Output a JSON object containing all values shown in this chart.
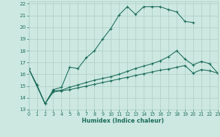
{
  "xlabel": "Humidex (Indice chaleur)",
  "bg_color": "#cce8e0",
  "grid_color": "#aaccC4",
  "line_color": "#1a6b5a",
  "xlim": [
    0,
    23
  ],
  "ylim": [
    13,
    22.2
  ],
  "yticks": [
    13,
    14,
    15,
    16,
    17,
    18,
    19,
    20,
    21,
    22
  ],
  "xticks": [
    0,
    1,
    2,
    3,
    4,
    5,
    6,
    7,
    8,
    9,
    10,
    11,
    12,
    13,
    14,
    15,
    16,
    17,
    18,
    19,
    20,
    21,
    22,
    23
  ],
  "line1_x": [
    0,
    1,
    2,
    3,
    4,
    5,
    6,
    7,
    8,
    9,
    10,
    11,
    12,
    13,
    14,
    15,
    16,
    17,
    18,
    19,
    20
  ],
  "line1_y": [
    16.5,
    15.1,
    13.5,
    14.7,
    14.9,
    16.6,
    16.5,
    17.4,
    18.0,
    19.0,
    19.9,
    21.05,
    21.75,
    21.1,
    21.75,
    21.75,
    21.75,
    21.5,
    21.3,
    20.5,
    20.4
  ],
  "line2_x": [
    0,
    1,
    2,
    3,
    4,
    5,
    6,
    7,
    8,
    9,
    10,
    11,
    12,
    13,
    14,
    15,
    16,
    17,
    18,
    19,
    20,
    21,
    22,
    23
  ],
  "line2_y": [
    16.5,
    15.1,
    13.5,
    14.6,
    14.65,
    14.9,
    15.1,
    15.3,
    15.5,
    15.65,
    15.8,
    16.0,
    16.25,
    16.5,
    16.7,
    16.9,
    17.15,
    17.5,
    18.0,
    17.3,
    16.8,
    17.1,
    16.9,
    16.1
  ],
  "line3_x": [
    0,
    2,
    3,
    4,
    5,
    6,
    7,
    8,
    9,
    10,
    11,
    12,
    13,
    14,
    15,
    16,
    17,
    18,
    19,
    20,
    21,
    22,
    23
  ],
  "line3_y": [
    16.5,
    13.5,
    14.5,
    14.6,
    14.7,
    14.85,
    15.0,
    15.15,
    15.3,
    15.45,
    15.6,
    15.75,
    15.9,
    16.05,
    16.2,
    16.35,
    16.45,
    16.6,
    16.75,
    16.1,
    16.4,
    16.3,
    16.1
  ]
}
